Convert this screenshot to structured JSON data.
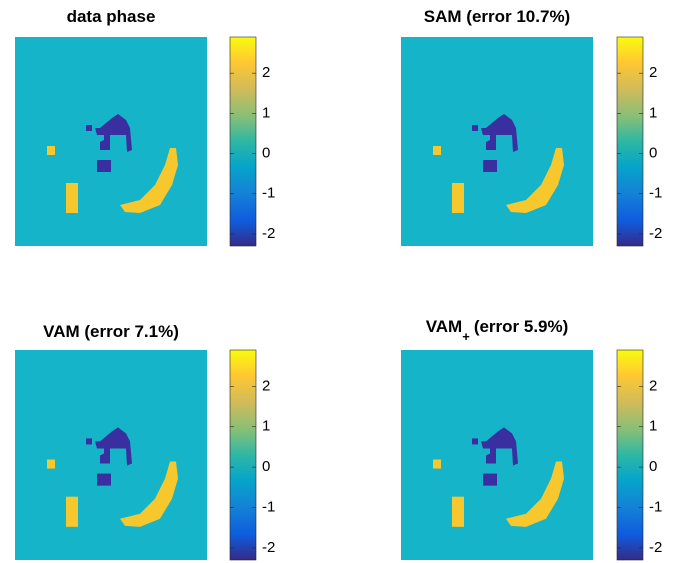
{
  "chart_data": [
    {
      "type": "image",
      "title": "data phase",
      "clim": [
        -2.3,
        2.9
      ],
      "cticks": [
        -2,
        -1,
        0,
        1,
        2
      ],
      "colormap": "parula"
    },
    {
      "type": "image",
      "title": "SAM (error 10.7%)",
      "clim": [
        -2.3,
        2.9
      ],
      "cticks": [
        -2,
        -1,
        0,
        1,
        2
      ],
      "colormap": "parula"
    },
    {
      "type": "image",
      "title": "VAM (error 7.1%)",
      "clim": [
        -2.3,
        2.9
      ],
      "cticks": [
        -2,
        -1,
        0,
        1,
        2
      ],
      "colormap": "parula"
    },
    {
      "type": "image",
      "title": "VAM",
      "title_subscript": "+",
      "title_rest": "(error 5.9%)",
      "clim": [
        -2.3,
        2.9
      ],
      "cticks": [
        -2,
        -1,
        0,
        1,
        2
      ],
      "colormap": "parula"
    }
  ]
}
